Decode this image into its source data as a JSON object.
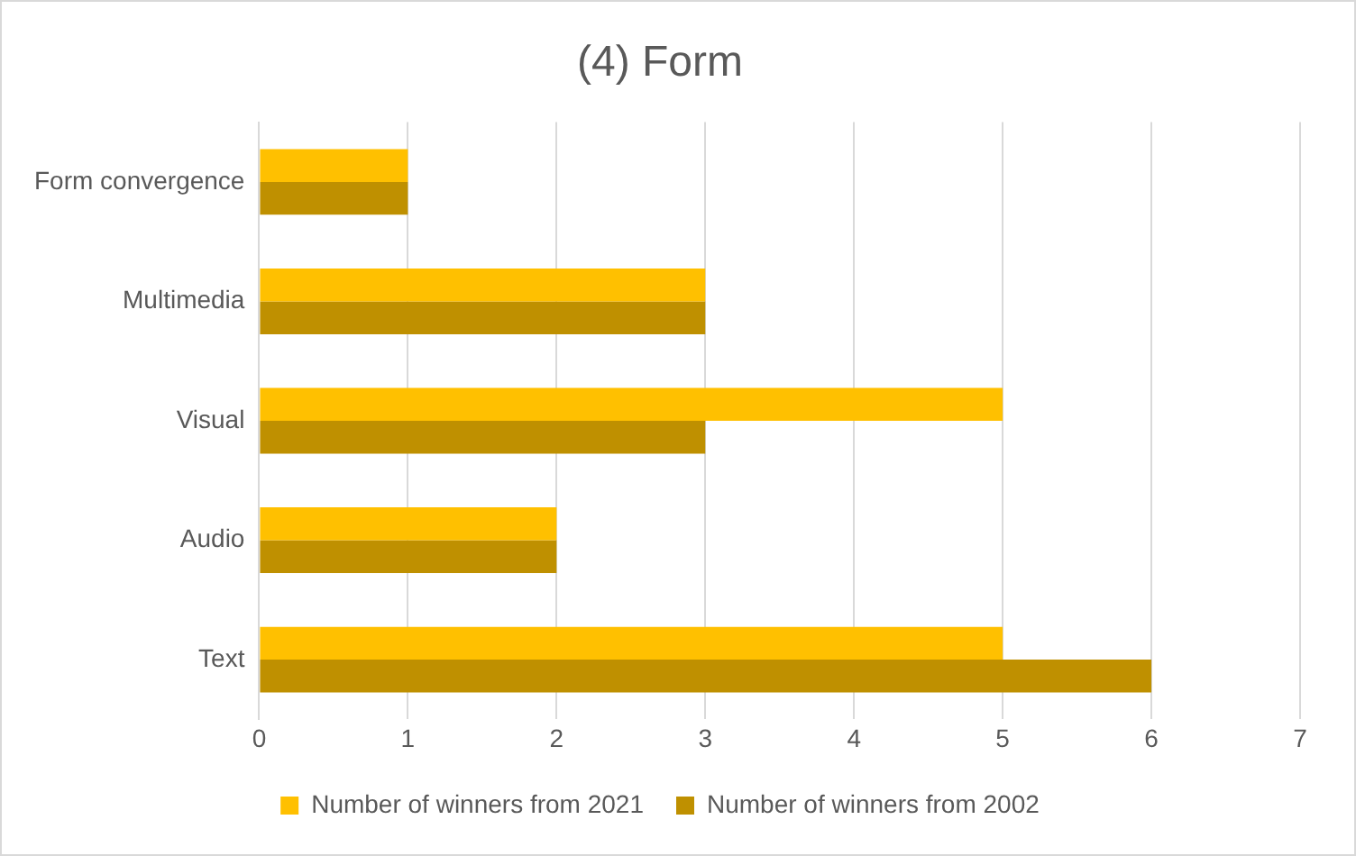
{
  "chart_data": {
    "type": "bar",
    "title": "(4) Form",
    "orientation": "horizontal",
    "categories": [
      "Form convergence",
      "Multimedia",
      "Visual",
      "Audio",
      "Text"
    ],
    "series": [
      {
        "name": "Number of winners from 2021",
        "color": "#ffc000",
        "values": [
          1,
          3,
          5,
          2,
          5
        ]
      },
      {
        "name": "Number of winners from 2002",
        "color": "#bf9000",
        "values": [
          1,
          3,
          3,
          2,
          6
        ]
      }
    ],
    "xlim": [
      0,
      7
    ],
    "xticks": [
      0,
      1,
      2,
      3,
      4,
      5,
      6,
      7
    ],
    "grid": "x",
    "legend": "bottom"
  }
}
